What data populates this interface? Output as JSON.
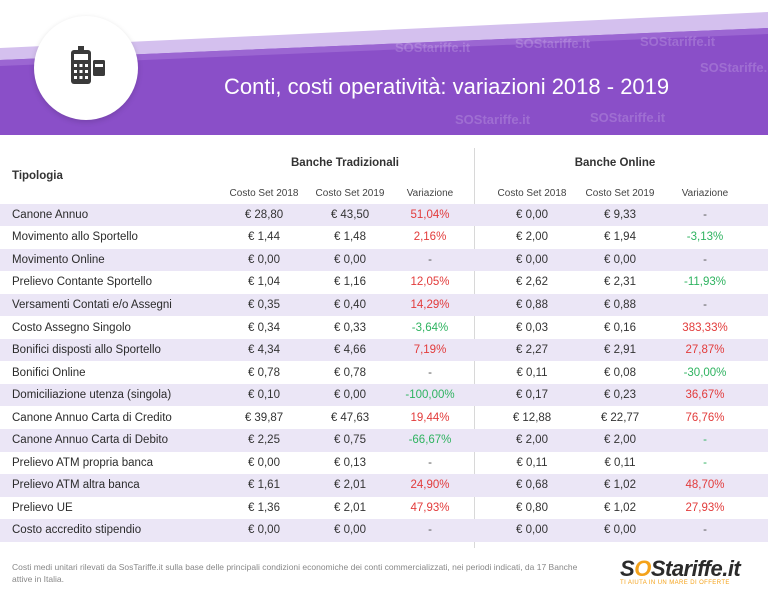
{
  "title": "Conti, costi operatività: variazioni 2018 - 2019",
  "icon": "pos-terminal-icon",
  "colors": {
    "banner": "#8a4fc8",
    "banner_light": "#b48bde",
    "row_shade": "#ebe6f6",
    "increase": "#e23b3b",
    "decrease": "#2fb360",
    "logo_accent": "#f4a21a"
  },
  "watermark": "SOStariffe.it",
  "table": {
    "row_header": "Tipologia",
    "groups": [
      "Banche Tradizionali",
      "Banche Online"
    ],
    "subheaders": [
      "Costo Set 2018",
      "Costo Set 2019",
      "Variazione",
      "Costo Set 2018",
      "Costo Set 2019",
      "Variazione"
    ],
    "rows": [
      {
        "label": "Canone Annuo",
        "cells": [
          "€ 28,80",
          "€ 43,50",
          "51,04%",
          "€ 0,00",
          "€ 9,33",
          "-"
        ],
        "trend": [
          "r",
          "n"
        ]
      },
      {
        "label": "Movimento allo Sportello",
        "cells": [
          "€ 1,44",
          "€ 1,48",
          "2,16%",
          "€ 2,00",
          "€ 1,94",
          "-3,13%"
        ],
        "trend": [
          "r",
          "g"
        ]
      },
      {
        "label": "Movimento Online",
        "cells": [
          "€ 0,00",
          "€ 0,00",
          "-",
          "€ 0,00",
          "€ 0,00",
          "-"
        ],
        "trend": [
          "n",
          "n"
        ]
      },
      {
        "label": "Prelievo Contante Sportello",
        "cells": [
          "€ 1,04",
          "€ 1,16",
          "12,05%",
          "€ 2,62",
          "€ 2,31",
          "-11,93%"
        ],
        "trend": [
          "r",
          "g"
        ]
      },
      {
        "label": "Versamenti Contati e/o Assegni",
        "cells": [
          "€ 0,35",
          "€ 0,40",
          "14,29%",
          "€ 0,88",
          "€ 0,88",
          "-"
        ],
        "trend": [
          "r",
          "n"
        ]
      },
      {
        "label": "Costo Assegno Singolo",
        "cells": [
          "€ 0,34",
          "€ 0,33",
          "-3,64%",
          "€ 0,03",
          "€ 0,16",
          "383,33%"
        ],
        "trend": [
          "g",
          "r"
        ]
      },
      {
        "label": "Bonifici disposti allo Sportello",
        "cells": [
          "€ 4,34",
          "€ 4,66",
          "7,19%",
          "€ 2,27",
          "€ 2,91",
          "27,87%"
        ],
        "trend": [
          "r",
          "r"
        ]
      },
      {
        "label": "Bonifici Online",
        "cells": [
          "€ 0,78",
          "€ 0,78",
          "-",
          "€ 0,11",
          "€ 0,08",
          "-30,00%"
        ],
        "trend": [
          "n",
          "g"
        ]
      },
      {
        "label": "Domiciliazione utenza (singola)",
        "cells": [
          "€ 0,10",
          "€ 0,00",
          "-100,00%",
          "€ 0,17",
          "€ 0,23",
          "36,67%"
        ],
        "trend": [
          "g",
          "r"
        ]
      },
      {
        "label": "Canone Annuo Carta di Credito",
        "cells": [
          "€ 39,87",
          "€ 47,63",
          "19,44%",
          "€ 12,88",
          "€ 22,77",
          "76,76%"
        ],
        "trend": [
          "r",
          "r"
        ]
      },
      {
        "label": "Canone Annuo Carta di Debito",
        "cells": [
          "€ 2,25",
          "€ 0,75",
          "-66,67%",
          "€ 2,00",
          "€ 2,00",
          "-"
        ],
        "trend": [
          "g",
          "g"
        ]
      },
      {
        "label": "Prelievo ATM propria banca",
        "cells": [
          "€ 0,00",
          "€ 0,13",
          "-",
          "€ 0,11",
          "€ 0,11",
          "-"
        ],
        "trend": [
          "n",
          "g"
        ]
      },
      {
        "label": "Prelievo ATM altra banca",
        "cells": [
          "€ 1,61",
          "€ 2,01",
          "24,90%",
          "€ 0,68",
          "€ 1,02",
          "48,70%"
        ],
        "trend": [
          "r",
          "r"
        ]
      },
      {
        "label": "Prelievo UE",
        "cells": [
          "€ 1,36",
          "€ 2,01",
          "47,93%",
          "€ 0,80",
          "€ 1,02",
          "27,93%"
        ],
        "trend": [
          "r",
          "r"
        ]
      },
      {
        "label": "Costo accredito stipendio",
        "cells": [
          "€ 0,00",
          "€ 0,00",
          "-",
          "€ 0,00",
          "€ 0,00",
          "-"
        ],
        "trend": [
          "n",
          "n"
        ]
      }
    ]
  },
  "footnote": "Costi medi unitari rilevati da SosTariffe.it sulla base delle principali condizioni economiche dei conti commercializzati, nei periodi indicati, da 17 Banche attive in Italia.",
  "logo": {
    "brand_s1": "S",
    "brand_o": "O",
    "brand_rest": "Stariffe.it",
    "tagline": "TI AIUTA IN UN MARE DI OFFERTE"
  }
}
